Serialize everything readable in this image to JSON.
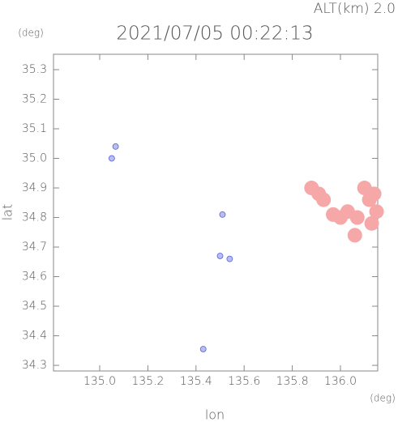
{
  "chart_data": {
    "type": "scatter",
    "title": "2021/07/05 00:22:13",
    "subtitle": "ALT(km) 2.0",
    "y_unit": "(deg)",
    "x_unit": "(deg)",
    "y_label": "lat",
    "x_label": "lon",
    "xlim": [
      134.808,
      136.155
    ],
    "ylim": [
      34.281,
      35.352
    ],
    "xticks": [
      {
        "value": 135.0,
        "label": "135.0"
      },
      135.2,
      135.4,
      135.6,
      135.8,
      {
        "value": 136.0,
        "label": "136.0"
      }
    ],
    "yticks": [
      35.3,
      35.2,
      35.1,
      {
        "value": 35.0,
        "label": "35.0"
      },
      34.9,
      34.8,
      34.7,
      34.6,
      34.5,
      34.4,
      34.3
    ],
    "series": [
      {
        "color": "#b8bdf2",
        "x": [
          135.05,
          135.066,
          135.51,
          135.5,
          135.54,
          135.43
        ],
        "y": [
          35.0,
          35.04,
          34.81,
          34.67,
          34.66,
          34.355
        ]
      },
      {
        "color": "#f6a7a7",
        "x": [
          135.88,
          135.91,
          135.93,
          135.97,
          136.0,
          136.03,
          136.07,
          136.1,
          136.12,
          136.15,
          136.14,
          136.13,
          136.06
        ],
        "y": [
          34.9,
          34.88,
          34.86,
          34.81,
          34.8,
          34.82,
          34.8,
          34.9,
          34.86,
          34.82,
          34.88,
          34.78,
          34.74
        ]
      }
    ]
  }
}
